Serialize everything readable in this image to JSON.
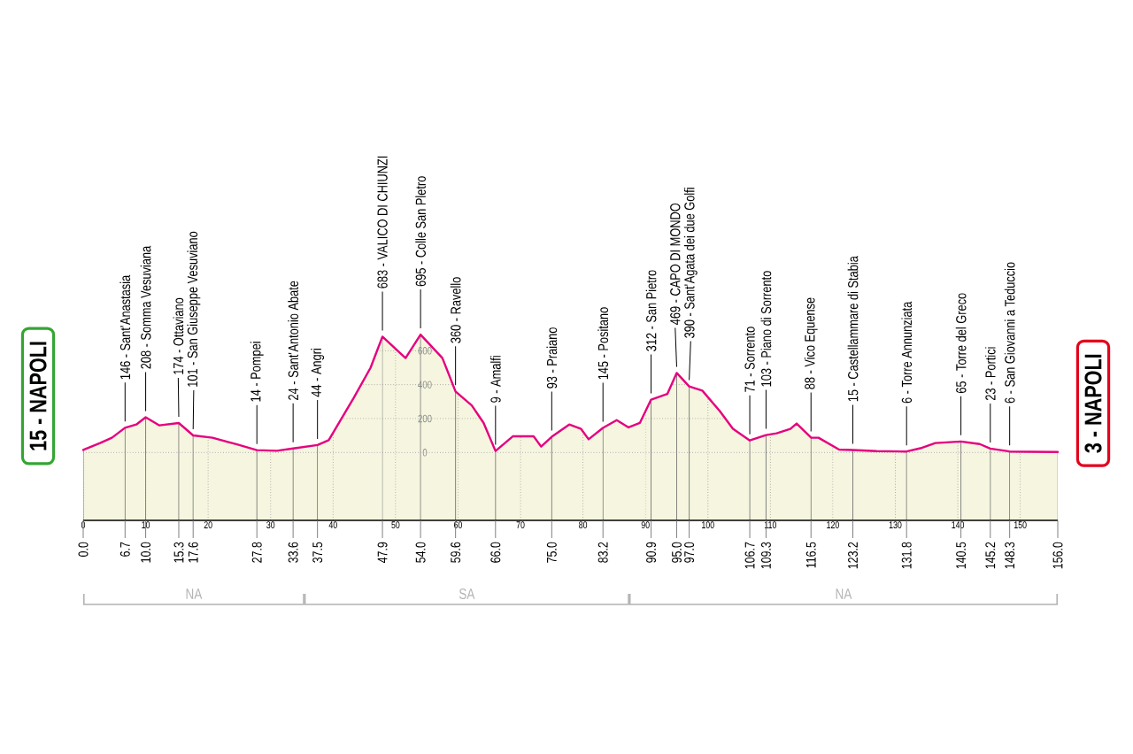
{
  "chart_data": {
    "type": "area",
    "color": "#e5007e",
    "x": [
      0,
      2.7,
      4.6,
      6.7,
      8.5,
      10.0,
      12.2,
      15.3,
      17.6,
      20.7,
      24.5,
      27.8,
      31.0,
      33.6,
      37.5,
      39.3,
      43.3,
      46.0,
      47.9,
      51.6,
      54.0,
      57.5,
      59.6,
      62.2,
      64.1,
      66.0,
      68.8,
      72.1,
      73.3,
      75.0,
      77.8,
      79.7,
      80.9,
      83.2,
      85.4,
      87.3,
      89.1,
      90.9,
      93.5,
      95.0,
      97.0,
      99.1,
      101.9,
      104.0,
      106.7,
      109.3,
      111.0,
      113.2,
      114.2,
      116.5,
      117.7,
      121.0,
      123.2,
      127.0,
      131.8,
      134.0,
      136.4,
      140.5,
      143.5,
      145.2,
      148.3,
      151.5,
      156.0
    ],
    "values": [
      15,
      56,
      87,
      146,
      165,
      208,
      160,
      174,
      101,
      87,
      49,
      14,
      10,
      24,
      44,
      73,
      322,
      500,
      683,
      557,
      695,
      557,
      360,
      278,
      174,
      9,
      96,
      96,
      35,
      93,
      165,
      139,
      78,
      145,
      191,
      148,
      174,
      312,
      345,
      469,
      390,
      365,
      244,
      140,
      71,
      103,
      113,
      139,
      171,
      88,
      87,
      17,
      15,
      8,
      6,
      25,
      56,
      65,
      50,
      23,
      6,
      4,
      3
    ],
    "xlim": [
      0,
      156
    ],
    "xticks": [
      0,
      10,
      20,
      30,
      40,
      50,
      60,
      70,
      80,
      90,
      100,
      110,
      120,
      130,
      140,
      150
    ],
    "ylim": [
      -400,
      800
    ],
    "yticks": [
      0,
      200,
      400,
      600
    ],
    "x2lim": [
      0,
      156
    ],
    "x2ticks": [
      {
        "value": 0,
        "label": "0.0"
      },
      6.7,
      {
        "value": 10,
        "label": "10.0"
      },
      15.3,
      17.6,
      27.8,
      33.6,
      37.5,
      47.9,
      {
        "value": 54,
        "label": "54.0"
      },
      59.6,
      {
        "value": 66,
        "label": "66.0"
      },
      {
        "value": 75,
        "label": "75.0"
      },
      83.2,
      90.9,
      {
        "value": 95,
        "label": "95.0"
      },
      {
        "value": 97,
        "label": "97.0"
      },
      106.7,
      109.3,
      116.5,
      123.2,
      131.8,
      140.5,
      145.2,
      148.3,
      {
        "value": 156,
        "label": "156.0"
      }
    ],
    "grid": true,
    "bands": [
      {
        "axis": "y",
        "from": -400,
        "to": 0,
        "color": "#f6f6e0"
      }
    ],
    "annotations": [
      {
        "text": "15 - NAPOLI",
        "x": 0,
        "y": 15
      },
      {
        "text": "146 - Sant'Anastasia",
        "x": 6.7,
        "y": 146
      },
      {
        "text": "208 - Somma Vesuviana",
        "x": 10.0,
        "y": 208
      },
      {
        "text": "174 - Ottaviano",
        "x": 15.3,
        "y": 174
      },
      {
        "text": "101 - San Giuseppe Vesuviano",
        "x": 17.6,
        "y": 101
      },
      {
        "text": "14 - Pompei",
        "x": 27.8,
        "y": 14
      },
      {
        "text": "24 - Sant'Antonio Abate",
        "x": 33.6,
        "y": 24
      },
      {
        "text": "44 - Angri",
        "x": 37.5,
        "y": 44
      },
      {
        "text": "683 - VALICO DI CHIUNZI",
        "x": 47.9,
        "y": 683
      },
      {
        "text": "695 - Colle San Pletro",
        "x": 54.0,
        "y": 695
      },
      {
        "text": "360 - Ravello",
        "x": 59.6,
        "y": 360
      },
      {
        "text": "9 - Amalfi",
        "x": 66.0,
        "y": 9
      },
      {
        "text": "93 - Praiano",
        "x": 75.0,
        "y": 93
      },
      {
        "text": "145 - Positano",
        "x": 83.2,
        "y": 145
      },
      {
        "text": "312 - San Pietro",
        "x": 90.9,
        "y": 312
      },
      {
        "text": "469 - CAPO DI MONDO",
        "x": 95.0,
        "y": 469
      },
      {
        "text": "390 - Sant'Agata dei due Golfi",
        "x": 97.0,
        "y": 390
      },
      {
        "text": "71 - Sorrento",
        "x": 106.7,
        "y": 71
      },
      {
        "text": "103 - Piano di Sorrento",
        "x": 109.3,
        "y": 103
      },
      {
        "text": "88 - Vico Equense",
        "x": 116.5,
        "y": 88
      },
      {
        "text": "15 - Castellammare di Stabia",
        "x": 123.2,
        "y": 15
      },
      {
        "text": "6 - Torre Annunziata",
        "x": 131.8,
        "y": 6
      },
      {
        "text": "65 - Torre del Greco",
        "x": 140.5,
        "y": 65
      },
      {
        "text": "23 - Portici",
        "x": 145.2,
        "y": 23
      },
      {
        "text": "6 - San Giovanni a Teduccio",
        "x": 148.3,
        "y": 6
      },
      {
        "text": "3 - NAPOLI",
        "x": 156,
        "y": 3
      },
      "NA",
      "SA",
      "NA"
    ]
  }
}
